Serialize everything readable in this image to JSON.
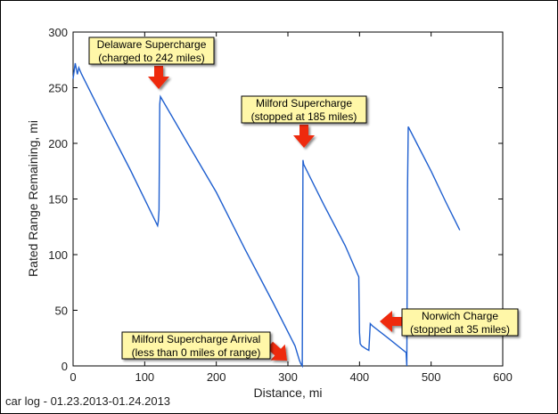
{
  "chart_data": {
    "type": "line",
    "title": "",
    "xlabel": "Distance, mi",
    "ylabel": "Rated Range Remaining, mi",
    "xlim": [
      0,
      600
    ],
    "ylim": [
      0,
      300
    ],
    "xticks": [
      0,
      100,
      200,
      300,
      400,
      500,
      600
    ],
    "yticks": [
      0,
      50,
      100,
      150,
      200,
      250,
      300
    ],
    "grid": false,
    "line_color": "#1f5fcf",
    "series": [
      {
        "x": [
          0,
          3,
          6,
          8,
          12,
          40,
          80,
          118,
          119,
          120,
          121,
          122,
          160,
          200,
          240,
          280,
          310,
          316,
          318,
          320,
          321,
          322,
          350,
          380,
          399,
          400,
          401,
          403,
          410,
          413,
          415,
          418,
          440,
          465,
          466,
          467,
          468,
          480,
          500,
          520,
          540
        ],
        "y": [
          258,
          272,
          262,
          268,
          262,
          226,
          176,
          126,
          130,
          140,
          235,
          242,
          200,
          156,
          105,
          56,
          18,
          5,
          2,
          0,
          185,
          181,
          145,
          108,
          80,
          30,
          20,
          18,
          15,
          14,
          38,
          36,
          25,
          12,
          0,
          160,
          215,
          200,
          175,
          148,
          122
        ]
      }
    ],
    "annotations": [
      {
        "line1": "Delaware Supercharge",
        "line2": "(charged to 242 miles)",
        "target_x": 120,
        "target_y": 242
      },
      {
        "line1": "Milford Supercharge",
        "line2": "(stopped at 185 miles)",
        "target_x": 322,
        "target_y": 185
      },
      {
        "line1": "Norwich Charge",
        "line2": "(stopped at 35 miles)",
        "target_x": 415,
        "target_y": 38
      },
      {
        "line1": "Milford Supercharge Arrival",
        "line2": "(less than 0 miles of range)",
        "target_x": 318,
        "target_y": 0
      }
    ],
    "annotation_fill": "#fff7a8",
    "arrow_color": "#ee2a10"
  },
  "footer": "car log - 01.23.2013-01.24.2013"
}
